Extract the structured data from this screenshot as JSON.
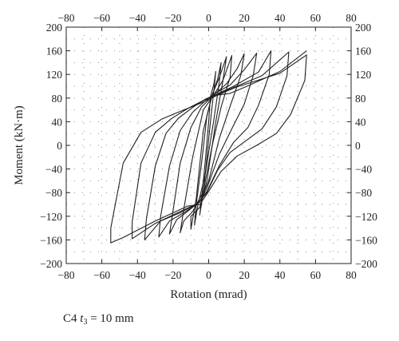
{
  "chart_data": {
    "type": "line",
    "xlabel": "Rotation (mrad)",
    "ylabel": "Moment (kN·m)",
    "xlim": [
      -80,
      80
    ],
    "ylim": [
      -200,
      200
    ],
    "xticks": [
      -80,
      -60,
      -40,
      -20,
      0,
      20,
      40,
      60,
      80
    ],
    "yticks": [
      -200,
      -160,
      -120,
      -80,
      -40,
      0,
      40,
      80,
      120,
      160,
      200
    ],
    "x_tick_labels": [
      "−80",
      "−60",
      "−40",
      "−20",
      "0",
      "20",
      "40",
      "60",
      "80"
    ],
    "y_tick_labels": [
      "−200",
      "−160",
      "−120",
      "−80",
      "−40",
      "0",
      "40",
      "80",
      "120",
      "160",
      "200"
    ],
    "ticks_on_all_sides": true,
    "grid": "dotted",
    "line_color": "#231f20",
    "series": [
      {
        "x": [
          5,
          15,
          40,
          55,
          54,
          46,
          38,
          27,
          16,
          7,
          0,
          -5,
          -12,
          -30,
          -48,
          -55,
          -55,
          -48,
          -38,
          -26,
          -14,
          -4,
          5,
          12,
          20,
          40,
          55
        ],
        "y": [
          85,
          98,
          122,
          153,
          110,
          52,
          20,
          0,
          -18,
          -44,
          -78,
          -100,
          -103,
          -128,
          -156,
          -165,
          -140,
          -30,
          22,
          45,
          60,
          72,
          85,
          88,
          98,
          125,
          160
        ]
      },
      {
        "x": [
          4,
          14,
          30,
          45,
          44,
          38,
          30,
          21,
          12,
          5,
          -1,
          -6,
          -16,
          -30,
          -43,
          -43,
          -38,
          -30,
          -21,
          -12,
          -3,
          4
        ],
        "y": [
          85,
          98,
          118,
          158,
          118,
          65,
          28,
          8,
          -12,
          -42,
          -80,
          -98,
          -112,
          -132,
          -158,
          -130,
          -30,
          22,
          45,
          62,
          76,
          85
        ]
      },
      {
        "x": [
          4,
          14,
          28,
          35,
          34,
          28,
          22,
          14,
          6,
          -1,
          -6,
          -16,
          -27,
          -36,
          -35,
          -30,
          -24,
          -17,
          -9,
          -2,
          4
        ],
        "y": [
          86,
          100,
          124,
          160,
          120,
          68,
          30,
          5,
          -34,
          -78,
          -98,
          -114,
          -128,
          -160,
          -125,
          -35,
          20,
          46,
          64,
          78,
          86
        ]
      },
      {
        "x": [
          3,
          12,
          20,
          27,
          25,
          20,
          13,
          6,
          -1,
          -5,
          -14,
          -22,
          -28,
          -27,
          -22,
          -16,
          -9,
          -2,
          3
        ],
        "y": [
          87,
          102,
          128,
          156,
          118,
          70,
          28,
          -15,
          -72,
          -96,
          -114,
          -128,
          -155,
          -120,
          -35,
          25,
          56,
          75,
          87
        ]
      },
      {
        "x": [
          3,
          10,
          16,
          20,
          18,
          12,
          6,
          0,
          -5,
          -12,
          -18,
          -22,
          -20,
          -16,
          -10,
          -4,
          3
        ],
        "y": [
          86,
          104,
          130,
          155,
          118,
          66,
          12,
          -60,
          -95,
          -112,
          -126,
          -150,
          -110,
          -30,
          30,
          65,
          86
        ]
      },
      {
        "x": [
          3,
          8,
          13,
          12,
          7,
          2,
          -3,
          -9,
          -14,
          -16,
          -14,
          -9,
          -3,
          3
        ],
        "y": [
          86,
          110,
          152,
          115,
          65,
          0,
          -78,
          -112,
          -128,
          -148,
          -108,
          -20,
          60,
          86
        ]
      },
      {
        "x": [
          2,
          6,
          10,
          8,
          4,
          -1,
          -5,
          -10,
          -10,
          -7,
          -3,
          2
        ],
        "y": [
          86,
          115,
          150,
          110,
          40,
          -60,
          -105,
          -120,
          -142,
          -90,
          25,
          86
        ]
      },
      {
        "x": [
          2,
          5,
          7,
          6,
          3,
          -2,
          -6,
          -8,
          -7,
          -4,
          -1,
          2
        ],
        "y": [
          85,
          112,
          140,
          108,
          45,
          -50,
          -100,
          -135,
          -100,
          -30,
          50,
          85
        ]
      },
      {
        "x": [
          1,
          3,
          4,
          3,
          1,
          -1,
          -3,
          -5,
          -4,
          -2,
          0,
          1
        ],
        "y": [
          82,
          105,
          125,
          95,
          40,
          -20,
          -80,
          -118,
          -90,
          -30,
          40,
          82
        ]
      }
    ]
  },
  "caption": {
    "prefix": "C4 ",
    "symbol": "t",
    "subscript": "3",
    "suffix": " = 10 mm"
  }
}
